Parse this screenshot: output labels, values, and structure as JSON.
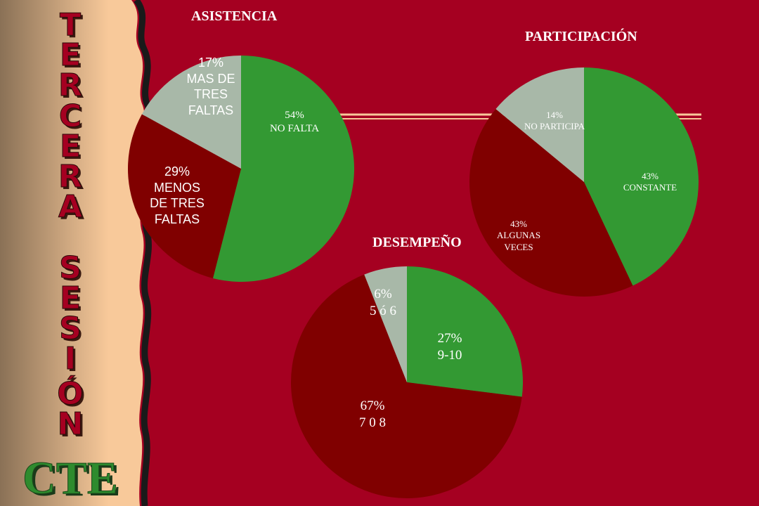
{
  "colors": {
    "background": "#a50021",
    "sidebar_light": "#f8c99a",
    "sidebar_dark": "#8a7156",
    "divider": "#1a1a1a",
    "title_fill": "#a50021",
    "cte_fill": "#2e8b2e",
    "green": "#339933",
    "dark_red": "#800000",
    "grey": "#a8b8a8",
    "label_white": "#ffffff",
    "accent_line": "#f8c99a"
  },
  "sidebar": {
    "vertical_title": [
      "T",
      "E",
      "R",
      "C",
      "E",
      "R",
      "A",
      "",
      "S",
      "E",
      "S",
      "I",
      "Ó",
      "N"
    ],
    "logo": "CTE"
  },
  "chart_data": [
    {
      "type": "pie",
      "title": "ASISTENCIA",
      "slices": [
        {
          "value": 54,
          "pct": "54%",
          "label": [
            "NO FALTA"
          ],
          "color": "#339933"
        },
        {
          "value": 29,
          "pct": "29%",
          "label": [
            "MENOS",
            "DE TRES",
            "FALTAS"
          ],
          "color": "#800000"
        },
        {
          "value": 17,
          "pct": "17%",
          "label": [
            "MAS DE",
            "TRES",
            "FALTAS"
          ],
          "color": "#a8b8a8"
        }
      ]
    },
    {
      "type": "pie",
      "title": "PARTICIPACIÓN",
      "slices": [
        {
          "value": 43,
          "pct": "43%",
          "label": [
            "CONSTANTE"
          ],
          "color": "#339933"
        },
        {
          "value": 43,
          "pct": "43%",
          "label": [
            "ALGUNAS",
            "VECES"
          ],
          "color": "#800000"
        },
        {
          "value": 14,
          "pct": "14%",
          "label": [
            "NO PARTICIPA"
          ],
          "color": "#a8b8a8"
        }
      ]
    },
    {
      "type": "pie",
      "title": "DESEMPEÑO",
      "slices": [
        {
          "value": 27,
          "pct": "27%",
          "label": [
            "9-10"
          ],
          "color": "#339933"
        },
        {
          "value": 67,
          "pct": "67%",
          "label": [
            "7 0 8"
          ],
          "color": "#800000"
        },
        {
          "value": 6,
          "pct": "6%",
          "label": [
            "5 ó 6"
          ],
          "color": "#a8b8a8"
        }
      ]
    }
  ]
}
